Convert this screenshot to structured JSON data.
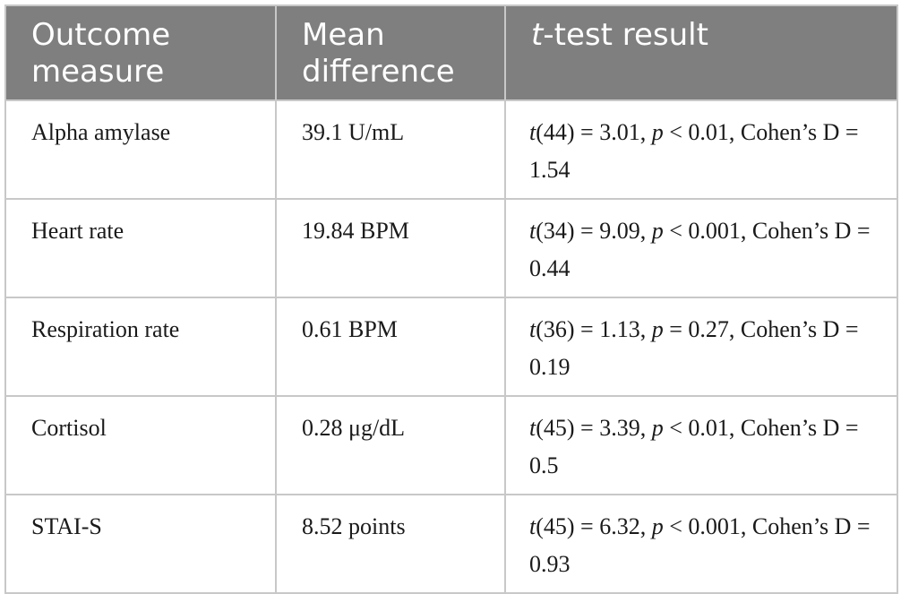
{
  "table": {
    "headers": {
      "col1": "Outcome measure",
      "col2": "Mean difference",
      "col3_italic": "t",
      "col3_rest": "-test result"
    },
    "rows": [
      {
        "measure": "Alpha amylase",
        "mean_difference": "39.1 U/mL",
        "df": "(44) = 3.01, ",
        "p_part": " < 0.01, Cohen’s D = 1.54"
      },
      {
        "measure": "Heart rate",
        "mean_difference": "19.84 BPM",
        "df": "(34) = 9.09, ",
        "p_part": " < 0.001, Cohen’s D = 0.44"
      },
      {
        "measure": "Respiration rate",
        "mean_difference": "0.61 BPM",
        "df": "(36) = 1.13, ",
        "p_part": " = 0.27, Cohen’s D = 0.19"
      },
      {
        "measure": "Cortisol",
        "mean_difference": "0.28 μg/dL",
        "df": "(45) = 3.39, ",
        "p_part": " < 0.01, Cohen’s D = 0.5"
      },
      {
        "measure": "STAI-S",
        "mean_difference": "8.52 points",
        "df": "(45) = 6.32, ",
        "p_part": " < 0.001, Cohen’s D = 0.93"
      }
    ],
    "symbols": {
      "t": "t",
      "p": "p"
    }
  }
}
